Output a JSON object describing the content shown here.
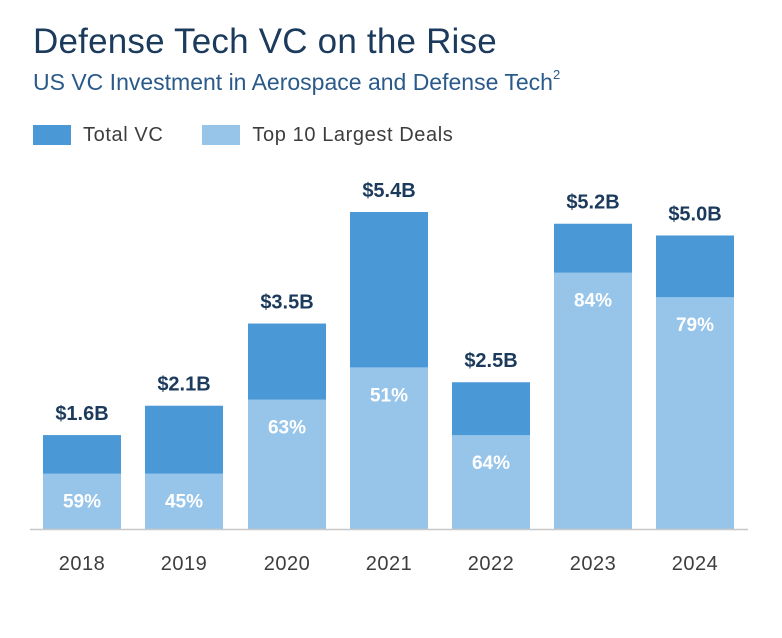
{
  "header": {
    "title": "Defense Tech VC on the Rise",
    "subtitle": "US VC Investment in Aerospace and Defense Tech",
    "subtitle_footnote": "2"
  },
  "colors": {
    "total_vc": "#4a98d6",
    "top10": "#97c5ea",
    "axis": "#c8c8c8",
    "title": "#1b3a5c"
  },
  "chart_data": {
    "type": "bar",
    "stacked": "overlay",
    "title": "Defense Tech VC on the Rise",
    "subtitle": "US VC Investment in Aerospace and Defense Tech",
    "categories": [
      "2018",
      "2019",
      "2020",
      "2021",
      "2022",
      "2023",
      "2024"
    ],
    "series": [
      {
        "name": "Total VC",
        "values": [
          1.6,
          2.1,
          3.5,
          5.4,
          2.5,
          5.2,
          5.0
        ],
        "labels": [
          "$1.6B",
          "$2.1B",
          "$3.5B",
          "$5.4B",
          "$2.5B",
          "$5.2B",
          "$5.0B"
        ]
      },
      {
        "name": "Top 10 Largest Deals",
        "share_of_total_pct": [
          59,
          45,
          63,
          51,
          64,
          84,
          79
        ],
        "labels": [
          "59%",
          "45%",
          "63%",
          "51%",
          "64%",
          "84%",
          "79%"
        ]
      }
    ],
    "units": "USD billions",
    "ylim": [
      0,
      5.4
    ],
    "grid": false,
    "legend": "top-left"
  }
}
